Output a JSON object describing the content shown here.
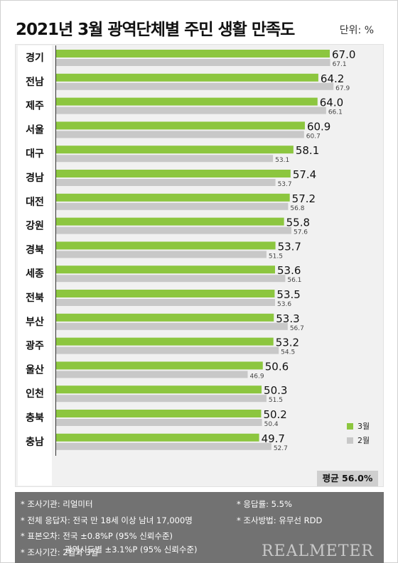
{
  "header": {
    "title": "2021년 3월 광역단체별 주민 생활 만족도",
    "unit": "단위: %"
  },
  "colors": {
    "march": "#8cc63f",
    "feb": "#c8c8c8"
  },
  "chart_data": {
    "type": "bar",
    "orientation": "horizontal",
    "categories": [
      "경기",
      "전남",
      "제주",
      "서울",
      "대구",
      "경남",
      "대전",
      "강원",
      "경북",
      "세종",
      "전북",
      "부산",
      "광주",
      "울산",
      "인천",
      "충북",
      "충남"
    ],
    "series": [
      {
        "name": "3월",
        "values": [
          67.0,
          64.2,
          64.0,
          60.9,
          58.1,
          57.4,
          57.2,
          55.8,
          53.7,
          53.6,
          53.5,
          53.3,
          53.2,
          50.6,
          50.3,
          50.2,
          49.7
        ]
      },
      {
        "name": "2월",
        "values": [
          67.1,
          67.9,
          66.1,
          60.7,
          53.1,
          53.7,
          56.8,
          57.6,
          51.5,
          56.1,
          53.6,
          56.7,
          54.5,
          46.9,
          51.5,
          50.4,
          52.7
        ]
      }
    ],
    "xlim": [
      0,
      70
    ],
    "legend": "bottom-right",
    "average_label": "평균 56.0%"
  },
  "notes": {
    "agency": "* 조사기관: 리얼미터",
    "response_rate": "* 응답률: 5.5%",
    "respondents": "* 전체 응답자: 전국 만 18세 이상 남녀 17,000명",
    "method": "* 조사방법: 유무선 RDD",
    "error_national": "* 표본오차: 전국 ±0.8%P (95% 신뢰수준)",
    "error_regional": "광역시도별 ±3.1%P (95% 신뢰수준)",
    "period": "* 조사기간: 2월과 3월"
  },
  "brand": "REALMETER"
}
